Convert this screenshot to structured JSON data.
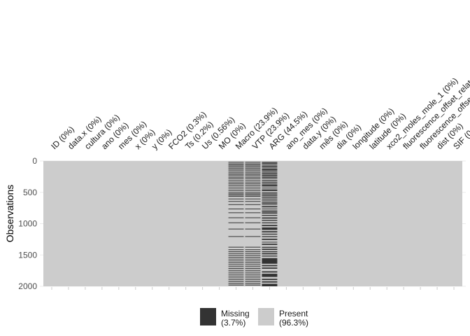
{
  "chart_data": {
    "type": "heatmap",
    "title": "",
    "xlabel": "",
    "ylabel": "Observations",
    "ylim": [
      0,
      2000
    ],
    "yticks": [
      0,
      500,
      1000,
      1500,
      2000
    ],
    "n_rows": 2000,
    "columns": [
      "ID (0%)",
      "data.x (0%)",
      "cultura (0%)",
      "ano (0%)",
      "mes (0%)",
      "x (0%)",
      "y (0%)",
      "FCO2 (0.3%)",
      "Ts (0.2%)",
      "Us (0.56%)",
      "MO (0%)",
      "Macro (23.9%)",
      "VTP (23.9%)",
      "ARG (44.5%)",
      "ano_mes (0%)",
      "data.y (0%)",
      "mês (0%)",
      "dia (0%)",
      "longitude (0%)",
      "latitude (0%)",
      "xco2_moles_mole_1 (0%)",
      "fluorescence_offset_relat",
      "fluorescence_offse",
      "dist (0%)",
      "SIF (0"
    ],
    "missing_segments": [
      {
        "column": "Macro (23.9%)",
        "ranges": [
          [
            15,
            22
          ],
          [
            40,
            45
          ],
          [
            60,
            64
          ],
          [
            80,
            90
          ],
          [
            105,
            110
          ],
          [
            125,
            128
          ],
          [
            150,
            160
          ],
          [
            175,
            180
          ],
          [
            200,
            203
          ],
          [
            220,
            232
          ],
          [
            250,
            255
          ],
          [
            270,
            274
          ],
          [
            300,
            310
          ],
          [
            330,
            334
          ],
          [
            355,
            360
          ],
          [
            380,
            390
          ],
          [
            410,
            414
          ],
          [
            440,
            446
          ],
          [
            470,
            475
          ],
          [
            500,
            508
          ],
          [
            520,
            524
          ],
          [
            540,
            545
          ],
          [
            560,
            570
          ],
          [
            600,
            604
          ],
          [
            640,
            645
          ],
          [
            690,
            700
          ],
          [
            760,
            764
          ],
          [
            820,
            830
          ],
          [
            900,
            906
          ],
          [
            980,
            985
          ],
          [
            1080,
            1090
          ],
          [
            1200,
            1205
          ],
          [
            1370,
            1380
          ],
          [
            1410,
            1416
          ],
          [
            1440,
            1446
          ],
          [
            1470,
            1480
          ],
          [
            1500,
            1506
          ],
          [
            1530,
            1536
          ],
          [
            1560,
            1566
          ],
          [
            1590,
            1600
          ],
          [
            1620,
            1626
          ],
          [
            1650,
            1656
          ],
          [
            1680,
            1686
          ],
          [
            1710,
            1716
          ],
          [
            1740,
            1746
          ],
          [
            1770,
            1780
          ],
          [
            1800,
            1806
          ],
          [
            1830,
            1836
          ],
          [
            1860,
            1866
          ],
          [
            1890,
            1900
          ],
          [
            1920,
            1926
          ],
          [
            1950,
            1956
          ],
          [
            1975,
            1985
          ]
        ]
      },
      {
        "column": "VTP (23.9%)",
        "ranges": [
          [
            15,
            22
          ],
          [
            40,
            45
          ],
          [
            60,
            64
          ],
          [
            80,
            90
          ],
          [
            105,
            110
          ],
          [
            125,
            128
          ],
          [
            150,
            160
          ],
          [
            175,
            180
          ],
          [
            200,
            203
          ],
          [
            220,
            232
          ],
          [
            250,
            255
          ],
          [
            270,
            274
          ],
          [
            300,
            310
          ],
          [
            330,
            334
          ],
          [
            355,
            360
          ],
          [
            380,
            390
          ],
          [
            410,
            414
          ],
          [
            440,
            446
          ],
          [
            470,
            475
          ],
          [
            500,
            508
          ],
          [
            520,
            524
          ],
          [
            540,
            545
          ],
          [
            560,
            570
          ],
          [
            600,
            604
          ],
          [
            640,
            645
          ],
          [
            690,
            700
          ],
          [
            760,
            764
          ],
          [
            820,
            830
          ],
          [
            900,
            906
          ],
          [
            980,
            985
          ],
          [
            1080,
            1090
          ],
          [
            1200,
            1205
          ],
          [
            1370,
            1380
          ],
          [
            1410,
            1416
          ],
          [
            1440,
            1446
          ],
          [
            1470,
            1480
          ],
          [
            1500,
            1506
          ],
          [
            1530,
            1536
          ],
          [
            1560,
            1566
          ],
          [
            1590,
            1600
          ],
          [
            1620,
            1626
          ],
          [
            1650,
            1656
          ],
          [
            1680,
            1686
          ],
          [
            1710,
            1716
          ],
          [
            1740,
            1746
          ],
          [
            1770,
            1780
          ],
          [
            1800,
            1806
          ],
          [
            1830,
            1836
          ],
          [
            1860,
            1866
          ],
          [
            1890,
            1900
          ],
          [
            1920,
            1926
          ],
          [
            1950,
            1956
          ],
          [
            1975,
            1985
          ]
        ]
      },
      {
        "column": "ARG (44.5%)",
        "ranges": [
          [
            15,
            22
          ],
          [
            30,
            45
          ],
          [
            55,
            64
          ],
          [
            75,
            95
          ],
          [
            105,
            112
          ],
          [
            125,
            145
          ],
          [
            150,
            165
          ],
          [
            175,
            182
          ],
          [
            195,
            212
          ],
          [
            220,
            240
          ],
          [
            250,
            258
          ],
          [
            265,
            280
          ],
          [
            300,
            315
          ],
          [
            330,
            345
          ],
          [
            355,
            362
          ],
          [
            375,
            400
          ],
          [
            410,
            420
          ],
          [
            440,
            450
          ],
          [
            460,
            480
          ],
          [
            500,
            512
          ],
          [
            520,
            535
          ],
          [
            545,
            560
          ],
          [
            570,
            585
          ],
          [
            600,
            615
          ],
          [
            630,
            645
          ],
          [
            660,
            680
          ],
          [
            690,
            700
          ],
          [
            720,
            740
          ],
          [
            760,
            770
          ],
          [
            790,
            810
          ],
          [
            820,
            840
          ],
          [
            860,
            875
          ],
          [
            900,
            920
          ],
          [
            940,
            955
          ],
          [
            980,
            995
          ],
          [
            1020,
            1040
          ],
          [
            1060,
            1100
          ],
          [
            1120,
            1140
          ],
          [
            1160,
            1175
          ],
          [
            1200,
            1215
          ],
          [
            1240,
            1260
          ],
          [
            1290,
            1300
          ],
          [
            1320,
            1340
          ],
          [
            1370,
            1385
          ],
          [
            1400,
            1420
          ],
          [
            1440,
            1455
          ],
          [
            1470,
            1490
          ],
          [
            1510,
            1525
          ],
          [
            1550,
            1640
          ],
          [
            1660,
            1680
          ],
          [
            1700,
            1720
          ],
          [
            1760,
            1780
          ],
          [
            1800,
            1850
          ],
          [
            1880,
            1900
          ],
          [
            1920,
            1940
          ],
          [
            1960,
            2000
          ]
        ]
      }
    ],
    "legend": {
      "position": "bottom",
      "items": [
        {
          "label": "Missing\n(3.7%)",
          "line1": "Missing",
          "line2": "(3.7%)",
          "color": "#333333"
        },
        {
          "label": "Present\n(96.3%)",
          "line1": "Present",
          "line2": "(96.3%)",
          "color": "#cccccc"
        }
      ]
    },
    "colors": {
      "missing": "#333333",
      "present": "#cccccc"
    }
  }
}
